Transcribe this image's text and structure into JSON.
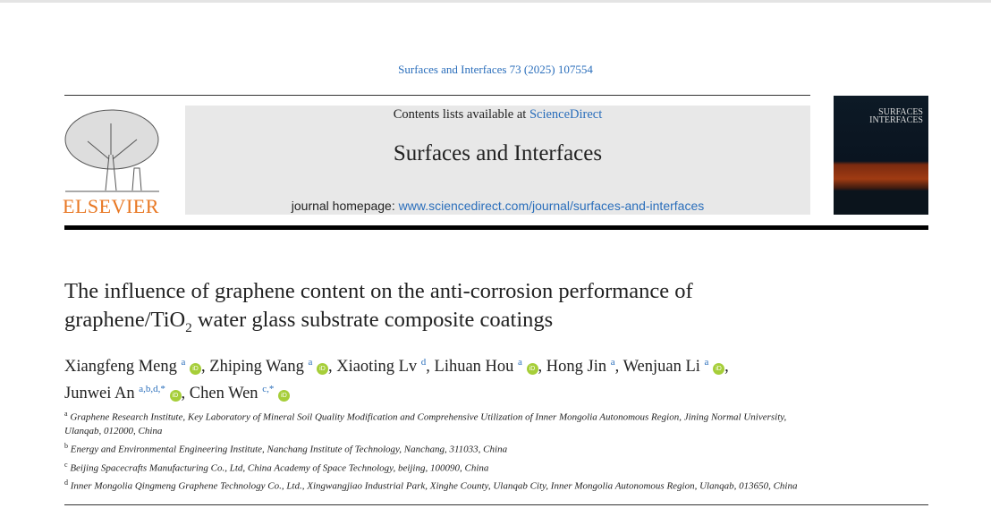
{
  "citation": "Surfaces and Interfaces 73 (2025) 107554",
  "header": {
    "contents_prefix": "Contents lists available at ",
    "contents_link": "ScienceDirect",
    "journal_title": "Surfaces and Interfaces",
    "homepage_prefix": "journal homepage: ",
    "homepage_link": "www.sciencedirect.com/journal/surfaces-and-interfaces",
    "publisher_logo": "ELSEVIER",
    "cover_title": "SURFACES INTERFACES"
  },
  "title_line1": "The influence of graphene content on the anti-corrosion performance of",
  "title_line2_a": "graphene/TiO",
  "title_line2_sub": "2",
  "title_line2_b": " water glass substrate composite coatings",
  "authors": [
    {
      "name": "Xiangfeng Meng",
      "aff": "a",
      "orcid": true
    },
    {
      "name": "Zhiping Wang",
      "aff": "a",
      "orcid": true
    },
    {
      "name": "Xiaoting Lv",
      "aff": "d",
      "orcid": false
    },
    {
      "name": "Lihuan Hou",
      "aff": "a",
      "orcid": true
    },
    {
      "name": "Hong Jin",
      "aff": "a",
      "orcid": false
    },
    {
      "name": "Wenjuan Li",
      "aff": "a",
      "orcid": true
    },
    {
      "name": "Junwei An",
      "aff": "a,b,d,*",
      "orcid": true
    },
    {
      "name": "Chen Wen",
      "aff": "c,*",
      "orcid": true
    }
  ],
  "orcid_label": "iD",
  "affiliations": [
    {
      "key": "a",
      "text": "Graphene Research Institute, Key Laboratory of Mineral Soil Quality Modification and Comprehensive Utilization of Inner Mongolia Autonomous Region, Jining Normal University, Ulanqab, 012000, China"
    },
    {
      "key": "b",
      "text": "Energy and Environmental Engineering Institute, Nanchang Institute of Technology, Nanchang, 311033, China"
    },
    {
      "key": "c",
      "text": "Beijing Spacecrafts Manufacturing Co., Ltd, China Academy of Space Technology, beijing, 100090, China"
    },
    {
      "key": "d",
      "text": "Inner Mongolia Qingmeng Graphene Technology Co., Ltd., Xingwangjiao Industrial Park, Xinghe County, Ulanqab City, Inner Mongolia Autonomous Region, Ulanqab, 013650, China"
    }
  ]
}
